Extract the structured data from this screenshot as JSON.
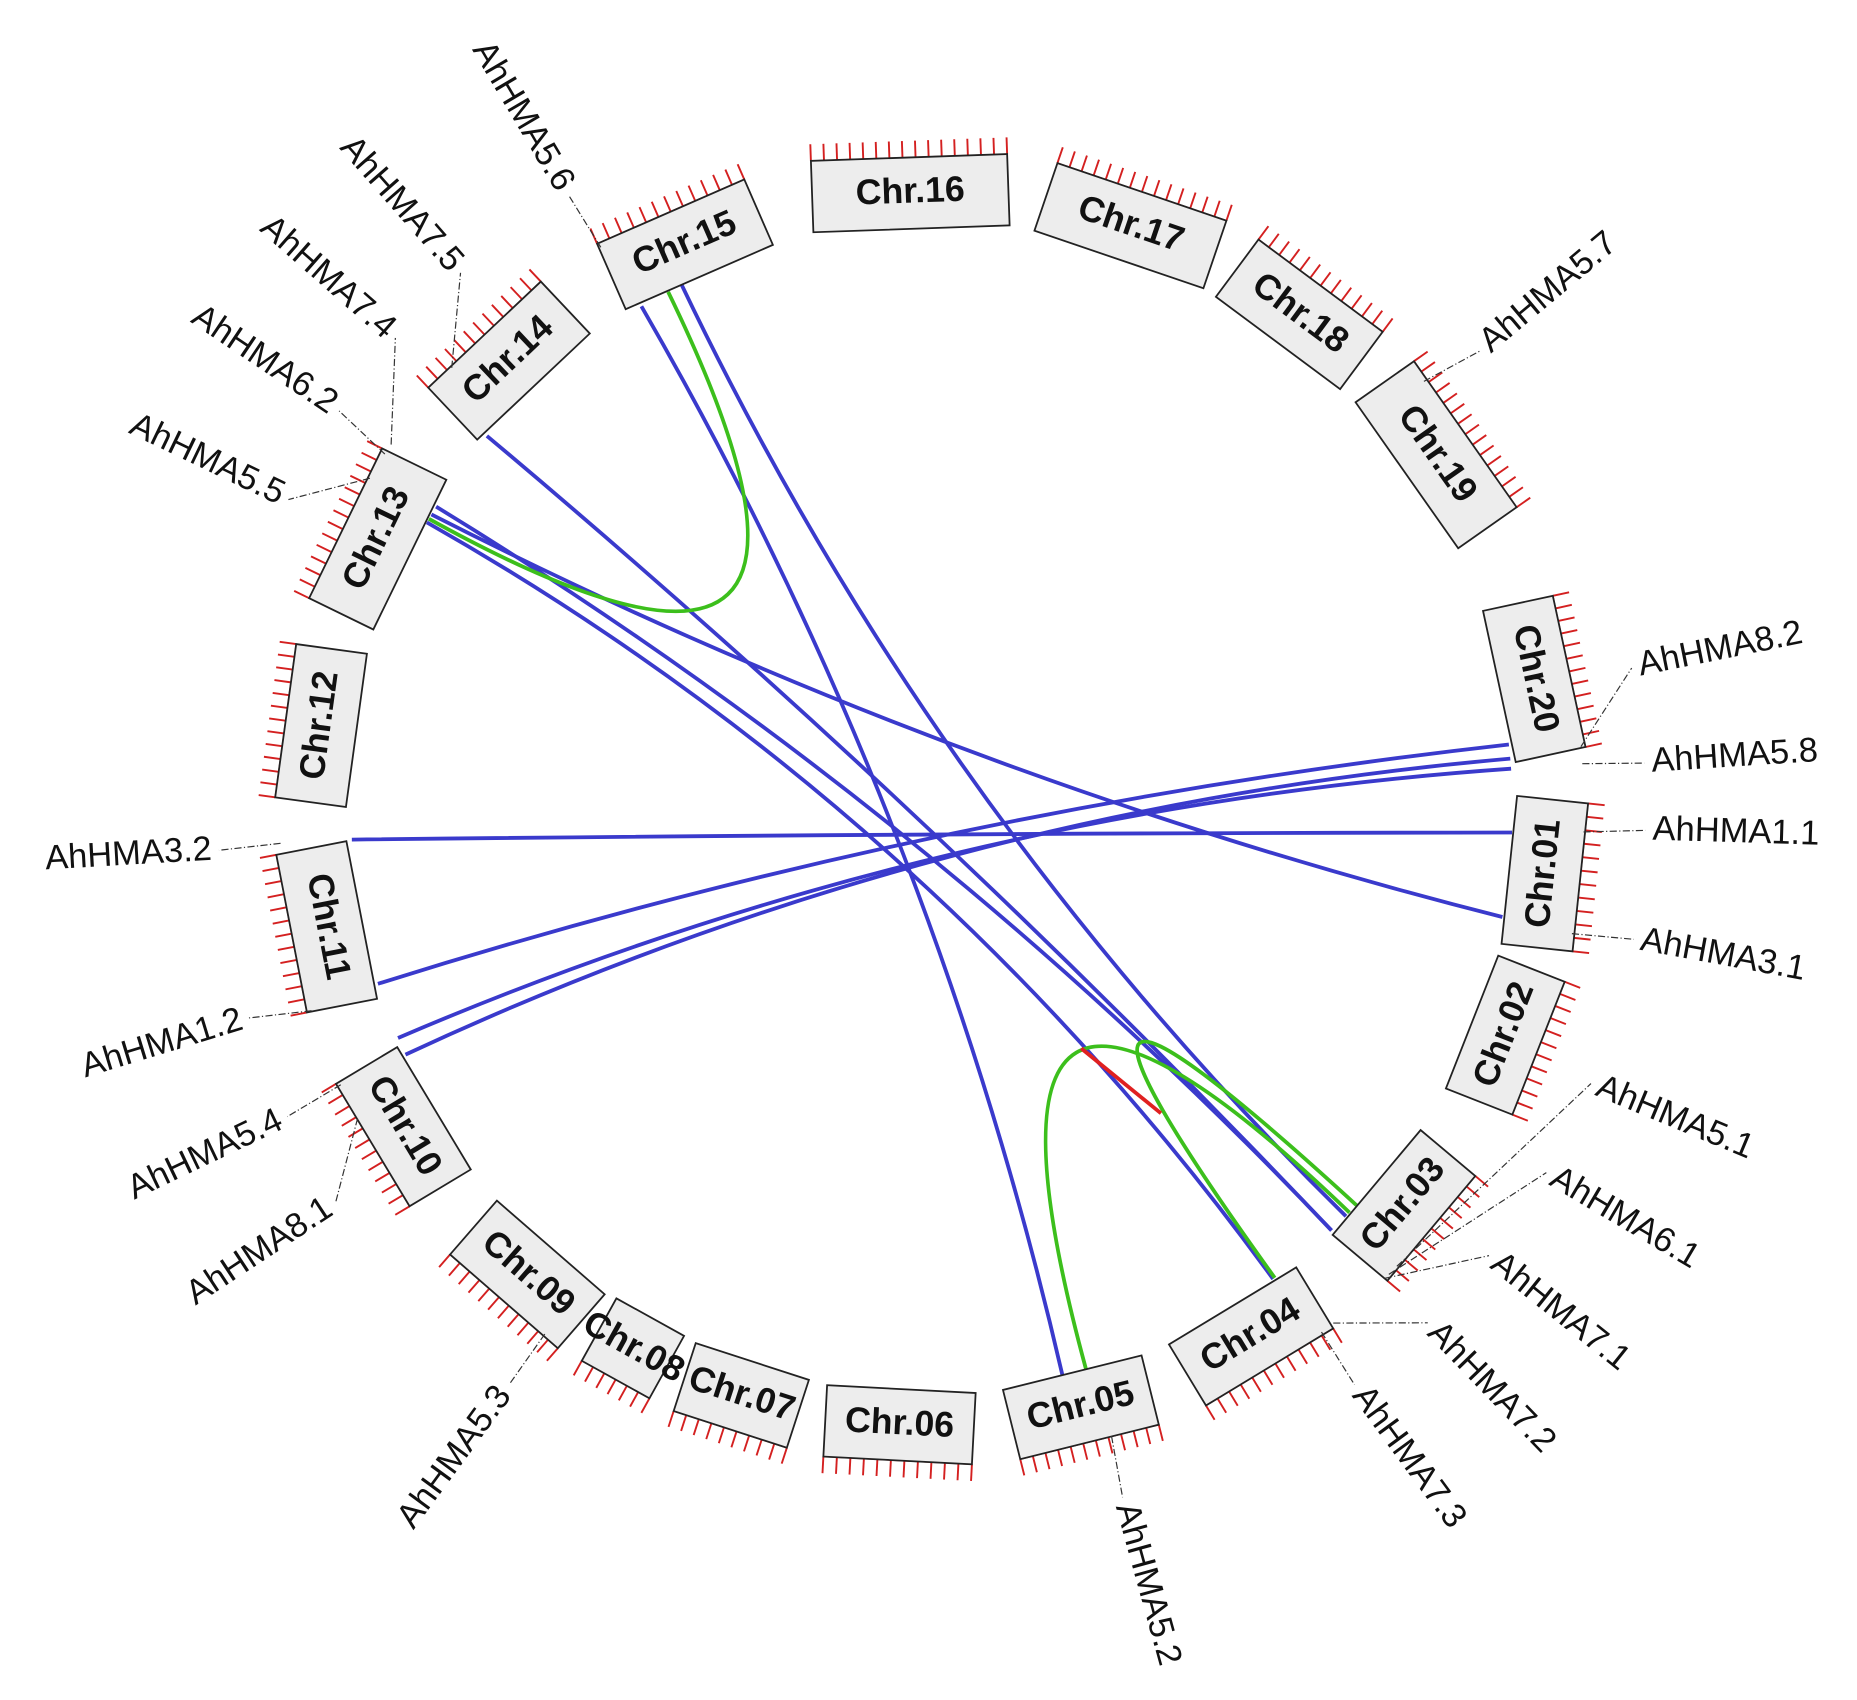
{
  "chromosomes": [
    "Chr.01",
    "Chr.02",
    "Chr.03",
    "Chr.04",
    "Chr.05",
    "Chr.06",
    "Chr.07",
    "Chr.08",
    "Chr.09",
    "Chr.10",
    "Chr.11",
    "Chr.12",
    "Chr.13",
    "Chr.14",
    "Chr.15",
    "Chr.16",
    "Chr.17",
    "Chr.18",
    "Chr.19",
    "Chr.20"
  ],
  "genes": [
    "AhHMA1.1",
    "AhHMA1.2",
    "AhHMA3.1",
    "AhHMA3.2",
    "AhHMA5.1",
    "AhHMA5.2",
    "AhHMA5.3",
    "AhHMA5.4",
    "AhHMA5.5",
    "AhHMA5.6",
    "AhHMA5.7",
    "AhHMA5.8",
    "AhHMA6.1",
    "AhHMA6.2",
    "AhHMA7.1",
    "AhHMA7.2",
    "AhHMA7.3",
    "AhHMA7.4",
    "AhHMA7.5",
    "AhHMA8.1",
    "AhHMA8.2"
  ]
}
